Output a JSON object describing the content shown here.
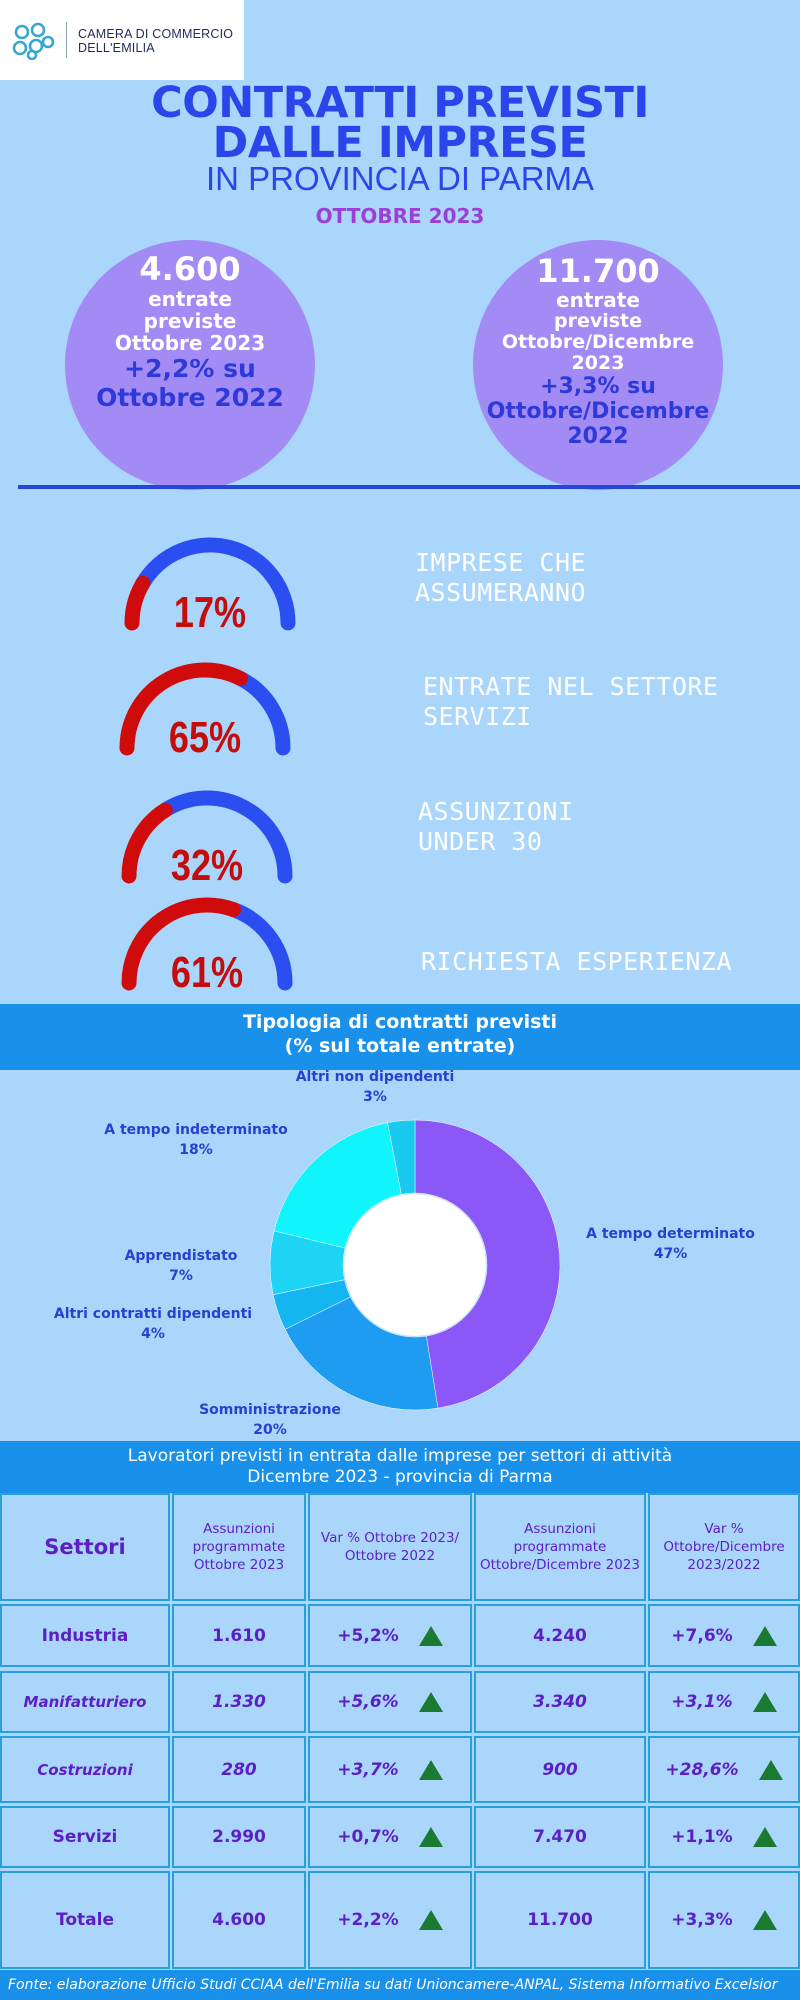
{
  "header": {
    "logo_line1": "CAMERA DI COMMERCIO",
    "logo_line2": "DELL'EMILIA",
    "title_line1": "CONTRATTI PREVISTI",
    "title_line2": "DALLE IMPRESE",
    "title_line3": "IN PROVINCIA DI PARMA",
    "period": "OTTOBRE 2023"
  },
  "kpis": [
    {
      "value": "4.600",
      "line1": "entrate",
      "line2": "previste",
      "line3": "Ottobre 2023",
      "var1": "+2,2% su",
      "var2": "Ottobre 2022"
    },
    {
      "value": "11.700",
      "line1": "entrate",
      "line2": "previste",
      "line3": "Ottobre/Dicembre",
      "line4": "2023",
      "var1": "+3,3% su",
      "var2": "Ottobre/Dicembre",
      "var3": "2022"
    }
  ],
  "gauges": [
    {
      "pct": 17,
      "label": "17%",
      "text1": "IMPRESE CHE",
      "text2": "ASSUMERANNO"
    },
    {
      "pct": 65,
      "label": "65%",
      "text1": "ENTRATE NEL SETTORE",
      "text2": "SERVIZI"
    },
    {
      "pct": 32,
      "label": "32%",
      "text1": "ASSUNZIONI",
      "text2": "UNDER 30"
    },
    {
      "pct": 61,
      "label": "61%",
      "text1": "RICHIESTA ESPERIENZA",
      "text2": ""
    }
  ],
  "gauge_colors": {
    "filled": "#d00b0b",
    "rest": "#2b4ef0"
  },
  "contracts": {
    "title1": "Tipologia di contratti previsti",
    "title2": "(% sul totale entrate)"
  },
  "chart_data": {
    "type": "pie",
    "title": "Tipologia di contratti previsti",
    "subtitle": "(% sul totale entrate)",
    "slices": [
      {
        "name": "A tempo determinato",
        "value": 47,
        "label": "47%",
        "color": "#8b57f6"
      },
      {
        "name": "Somministrazione",
        "value": 20,
        "label": "20%",
        "color": "#1e9cf2"
      },
      {
        "name": "Altri contratti dipendenti",
        "value": 4,
        "label": "4%",
        "color": "#15b5f2"
      },
      {
        "name": "Apprendistato",
        "value": 7,
        "label": "7%",
        "color": "#1dd4f5"
      },
      {
        "name": "A tempo indeterminato",
        "value": 18,
        "label": "18%",
        "color": "#0ff5fb"
      },
      {
        "name": "Altri non dipendenti",
        "value": 3,
        "label": "3%",
        "color": "#19c9ee"
      }
    ]
  },
  "table": {
    "title1": "Lavoratori previsti in entrata dalle imprese per settori di attività",
    "title2": "Dicembre 2023 - provincia di Parma",
    "headers": [
      "Settori",
      "Assunzioni programmate Ottobre 2023",
      "Var % Ottobre 2023/ Ottobre 2022",
      "Assunzioni programmate Ottobre/Dicembre 2023",
      "Var % Ottobre/Dicembre 2023/2022"
    ],
    "rows": [
      {
        "sector": "Industria",
        "a": "1.610",
        "v1": "+5,2%",
        "b": "4.240",
        "v2": "+7,6%"
      },
      {
        "sector": "Manifatturiero",
        "a": "1.330",
        "v1": "+5,6%",
        "b": "3.340",
        "v2": "+3,1%"
      },
      {
        "sector": "Costruzioni",
        "a": "280",
        "v1": "+3,7%",
        "b": "900",
        "v2": "+28,6%"
      },
      {
        "sector": "Servizi",
        "a": "2.990",
        "v1": "+0,7%",
        "b": "7.470",
        "v2": "+1,1%"
      },
      {
        "sector": "Totale",
        "a": "4.600",
        "v1": "+2,2%",
        "b": "11.700",
        "v2": "+3,3%"
      }
    ]
  },
  "footer": "Fonte: elaborazione Ufficio Studi CCIAA dell'Emilia su dati Unioncamere-ANPAL, Sistema Informativo Excelsior"
}
